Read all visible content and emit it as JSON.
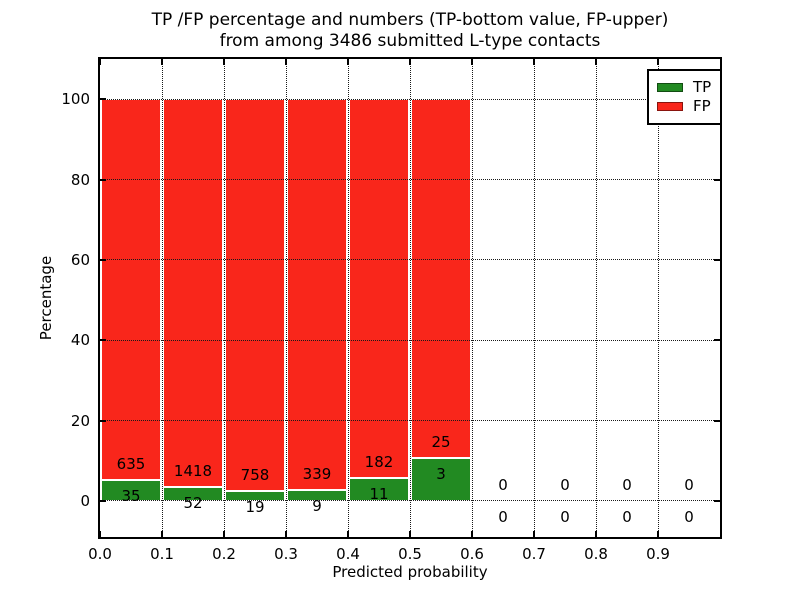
{
  "figure": {
    "title_line1": "TP /FP percentage and numbers (TP-bottom value, FP-upper)",
    "title_line2": "from among 3486 submitted L-type contacts"
  },
  "chart_data": {
    "type": "bar",
    "stacked": true,
    "normalized": "percent (TP+FP = 100% per bin)",
    "title": "TP /FP percentage and numbers (TP-bottom value, FP-upper) from among 3486 submitted L-type contacts",
    "xlabel": "Predicted probability",
    "ylabel": "Percentage",
    "xlim": [
      0.0,
      1.0
    ],
    "ylim": [
      -9,
      110
    ],
    "x_tick_labels": [
      "0.0",
      "0.1",
      "0.2",
      "0.3",
      "0.4",
      "0.5",
      "0.6",
      "0.7",
      "0.8",
      "0.9"
    ],
    "y_tick_values": [
      0,
      20,
      40,
      60,
      80,
      100
    ],
    "grid": {
      "on": true,
      "style": "dotted",
      "color": "#1a1a1a"
    },
    "total_contacts": 3486,
    "bins": [
      {
        "x_start": 0.0,
        "x_end": 0.1,
        "tp": 35,
        "fp": 635
      },
      {
        "x_start": 0.1,
        "x_end": 0.2,
        "tp": 52,
        "fp": 1418
      },
      {
        "x_start": 0.2,
        "x_end": 0.3,
        "tp": 19,
        "fp": 758
      },
      {
        "x_start": 0.3,
        "x_end": 0.4,
        "tp": 9,
        "fp": 339
      },
      {
        "x_start": 0.4,
        "x_end": 0.5,
        "tp": 11,
        "fp": 182
      },
      {
        "x_start": 0.5,
        "x_end": 0.6,
        "tp": 3,
        "fp": 25
      },
      {
        "x_start": 0.6,
        "x_end": 0.7,
        "tp": 0,
        "fp": 0
      },
      {
        "x_start": 0.7,
        "x_end": 0.8,
        "tp": 0,
        "fp": 0
      },
      {
        "x_start": 0.8,
        "x_end": 0.9,
        "tp": 0,
        "fp": 0
      },
      {
        "x_start": 0.9,
        "x_end": 1.0,
        "tp": 0,
        "fp": 0
      }
    ],
    "legend": {
      "position": "upper-right",
      "entries": [
        {
          "label": "TP",
          "color": "#228a22"
        },
        {
          "label": "FP",
          "color": "#f9261b"
        }
      ]
    },
    "colors": {
      "tp": "#228a22",
      "fp": "#f9261b",
      "background": "#ffffff",
      "grid": "#1a1a1a",
      "spine": "#000000"
    }
  }
}
